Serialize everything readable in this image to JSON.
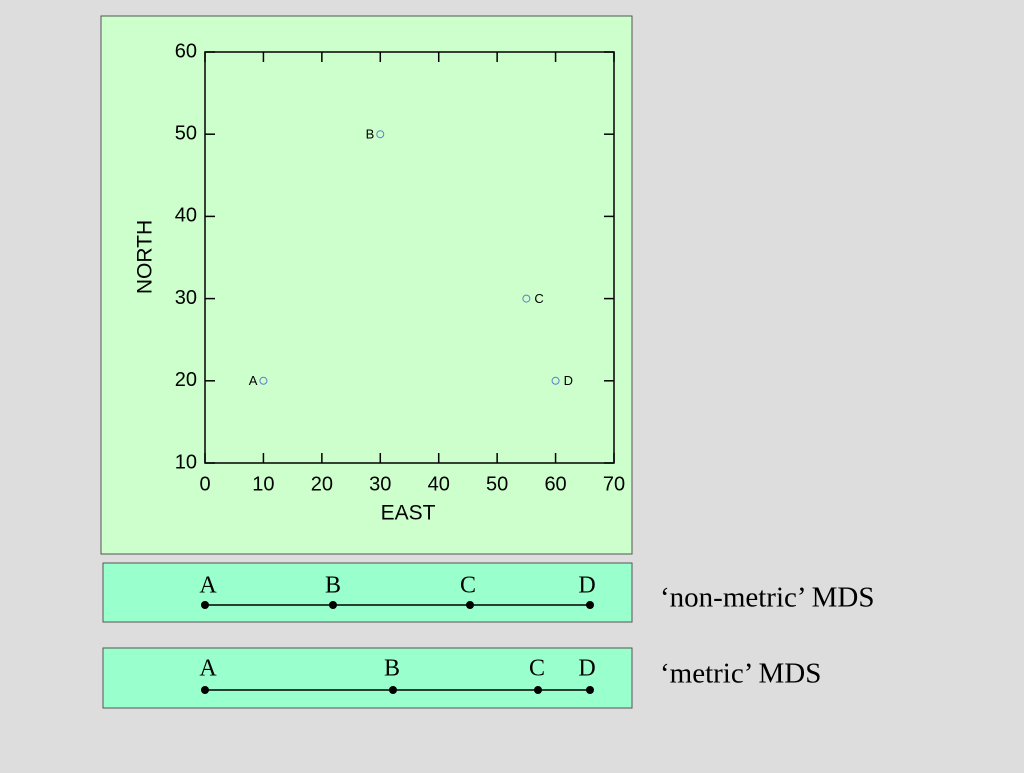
{
  "chart_data": {
    "type": "scatter",
    "x": [
      10,
      30,
      55,
      60
    ],
    "y": [
      20,
      50,
      30,
      20
    ],
    "labels": [
      "A",
      "B",
      "C",
      "D"
    ],
    "color": "#5b82c8",
    "xlabel": "EAST",
    "ylabel": "NORTH",
    "xlim": [
      0,
      70
    ],
    "xticks": [
      0,
      10,
      20,
      30,
      40,
      50,
      60,
      70
    ],
    "ylim": [
      10,
      60
    ],
    "yticks": [
      10,
      20,
      30,
      40,
      50,
      60
    ]
  },
  "strips": [
    {
      "caption": "‘non-metric’ MDS",
      "points": [
        "A",
        "B",
        "C",
        "D"
      ]
    },
    {
      "caption": "‘metric’ MDS",
      "points": [
        "A",
        "B",
        "C",
        "D"
      ]
    }
  ]
}
